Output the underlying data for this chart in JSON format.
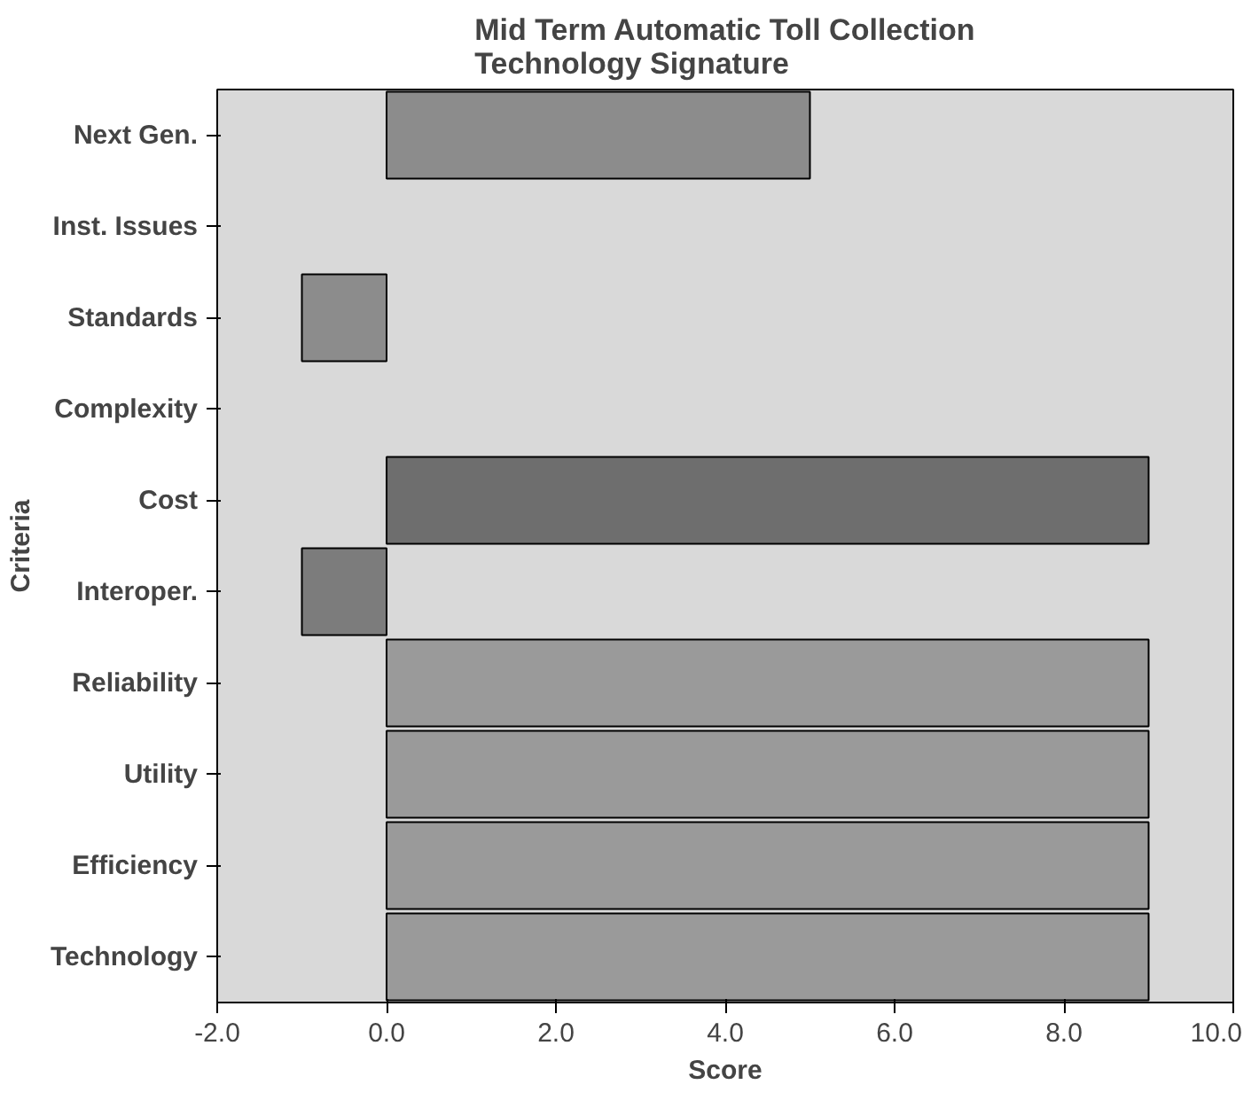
{
  "chart_data": {
    "type": "bar",
    "orientation": "horizontal",
    "title": "Mid Term Automatic Toll Collection\nTechnology Signature",
    "xlabel": "Score",
    "ylabel": "Criteria",
    "categories": [
      "Next Gen.",
      "Inst. Issues",
      "Standards",
      "Complexity",
      "Cost",
      "Interoper.",
      "Reliability",
      "Utility",
      "Efficiency",
      "Technology"
    ],
    "values": [
      5,
      0,
      -1,
      0,
      9,
      -1,
      9,
      9,
      9,
      9
    ],
    "colors": [
      "#8c8c8c",
      "#8c8c8c",
      "#8c8c8c",
      "#8c8c8c",
      "#6e6e6e",
      "#7c7c7c",
      "#9a9a9a",
      "#9a9a9a",
      "#9a9a9a",
      "#9a9a9a"
    ],
    "xlim": [
      -2,
      10
    ],
    "xticks": [
      {
        "value": -2,
        "label": "-2.0"
      },
      {
        "value": 0,
        "label": "0.0"
      },
      {
        "value": 2,
        "label": "2.0"
      },
      {
        "value": 4,
        "label": "4.0"
      },
      {
        "value": 6,
        "label": "6.0"
      },
      {
        "value": 8,
        "label": "8.0"
      },
      {
        "value": 10,
        "label": "10.0"
      }
    ],
    "grid": false
  }
}
